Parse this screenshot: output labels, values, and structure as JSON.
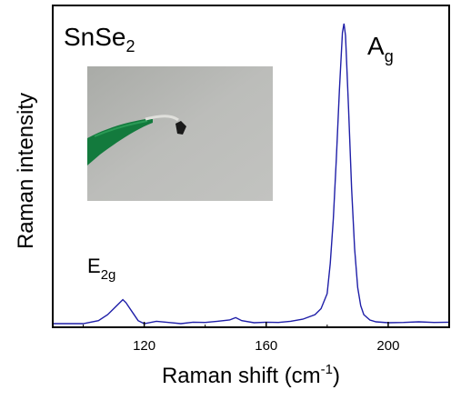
{
  "chart_data": {
    "type": "line",
    "title": "",
    "xlabel": "Raman shift (cm",
    "xlabel_sup": "-1",
    "xlabel_end": ")",
    "ylabel": "Raman intensity",
    "xlim": [
      90,
      220
    ],
    "ylim": [
      0,
      1
    ],
    "x_ticks": [
      120,
      160,
      200
    ],
    "y_ticks": [],
    "grid": false,
    "legend": "none",
    "line_color": "#1f1fa8",
    "annotations": {
      "material_base": "SnSe",
      "material_sub": "2",
      "peak1_base": "E",
      "peak1_sub": "2g",
      "peak2_base": "A",
      "peak2_sub": "g"
    },
    "series": [
      {
        "x": [
          90,
          100,
          105,
          108,
          110,
          112,
          113,
          114,
          116,
          118,
          120,
          124,
          128,
          132,
          136,
          140,
          144,
          148,
          150,
          152,
          156,
          160,
          164,
          168,
          172,
          176,
          178,
          180,
          181,
          182,
          183,
          184,
          185,
          185.5,
          186,
          187,
          188,
          189,
          190,
          191,
          192,
          194,
          196,
          200,
          205,
          210,
          215,
          220
        ],
        "y": [
          0.0,
          0.0,
          0.01,
          0.03,
          0.05,
          0.07,
          0.08,
          0.07,
          0.04,
          0.01,
          0.0,
          0.008,
          0.004,
          0.0,
          0.005,
          0.004,
          0.008,
          0.012,
          0.02,
          0.01,
          0.003,
          0.005,
          0.004,
          0.008,
          0.015,
          0.03,
          0.05,
          0.1,
          0.2,
          0.35,
          0.55,
          0.78,
          0.97,
          1.0,
          0.96,
          0.72,
          0.45,
          0.25,
          0.12,
          0.06,
          0.03,
          0.012,
          0.006,
          0.003,
          0.004,
          0.006,
          0.004,
          0.005
        ]
      }
    ]
  },
  "inset": {
    "label": "photo-inset",
    "background": "#b3b4b1",
    "tweezer_color": "#137a3d"
  }
}
